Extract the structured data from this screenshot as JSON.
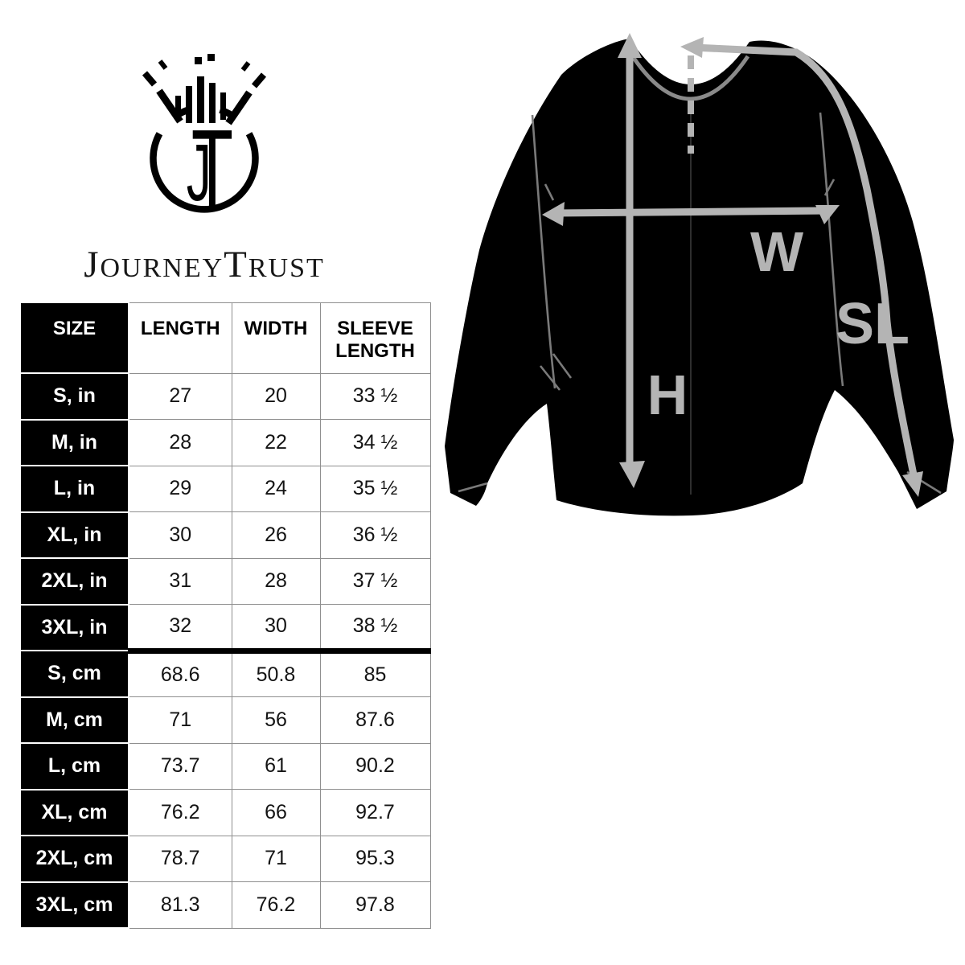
{
  "page": {
    "background": "#ffffff"
  },
  "brand": {
    "monogram_j": "J",
    "monogram_t": "T",
    "wordmark": {
      "initial1": "J",
      "rest1": "OURNEY",
      "initial2": "T",
      "rest2": "RUST"
    }
  },
  "icons": {
    "logo_mark": "jt-burst-circle-monogram"
  },
  "size_chart": {
    "columns": [
      "SIZE",
      "LENGTH",
      "WIDTH",
      "SLEEVE LENGTH"
    ],
    "cm_section_start": 6,
    "rows": [
      {
        "size": "S, in",
        "length": "27",
        "width": "20",
        "sleeve": "33 ½"
      },
      {
        "size": "M, in",
        "length": "28",
        "width": "22",
        "sleeve": "34 ½"
      },
      {
        "size": "L, in",
        "length": "29",
        "width": "24",
        "sleeve": "35 ½"
      },
      {
        "size": "XL, in",
        "length": "30",
        "width": "26",
        "sleeve": "36 ½"
      },
      {
        "size": "2XL, in",
        "length": "31",
        "width": "28",
        "sleeve": "37 ½"
      },
      {
        "size": "3XL, in",
        "length": "32",
        "width": "30",
        "sleeve": "38 ½"
      },
      {
        "size": "S, cm",
        "length": "68.6",
        "width": "50.8",
        "sleeve": "85"
      },
      {
        "size": "M, cm",
        "length": "71",
        "width": "56",
        "sleeve": "87.6"
      },
      {
        "size": "L, cm",
        "length": "73.7",
        "width": "61",
        "sleeve": "90.2"
      },
      {
        "size": "XL, cm",
        "length": "76.2",
        "width": "66",
        "sleeve": "92.7"
      },
      {
        "size": "2XL, cm",
        "length": "78.7",
        "width": "71",
        "sleeve": "95.3"
      },
      {
        "size": "3XL, cm",
        "length": "81.3",
        "width": "76.2",
        "sleeve": "97.8"
      }
    ]
  },
  "diagram": {
    "labels": {
      "height": "H",
      "width": "W",
      "sleeve": "SL"
    },
    "colors": {
      "garment": "#000000",
      "measure_line": "#b4b4b4",
      "seam_line": "#7a7a7a"
    }
  }
}
